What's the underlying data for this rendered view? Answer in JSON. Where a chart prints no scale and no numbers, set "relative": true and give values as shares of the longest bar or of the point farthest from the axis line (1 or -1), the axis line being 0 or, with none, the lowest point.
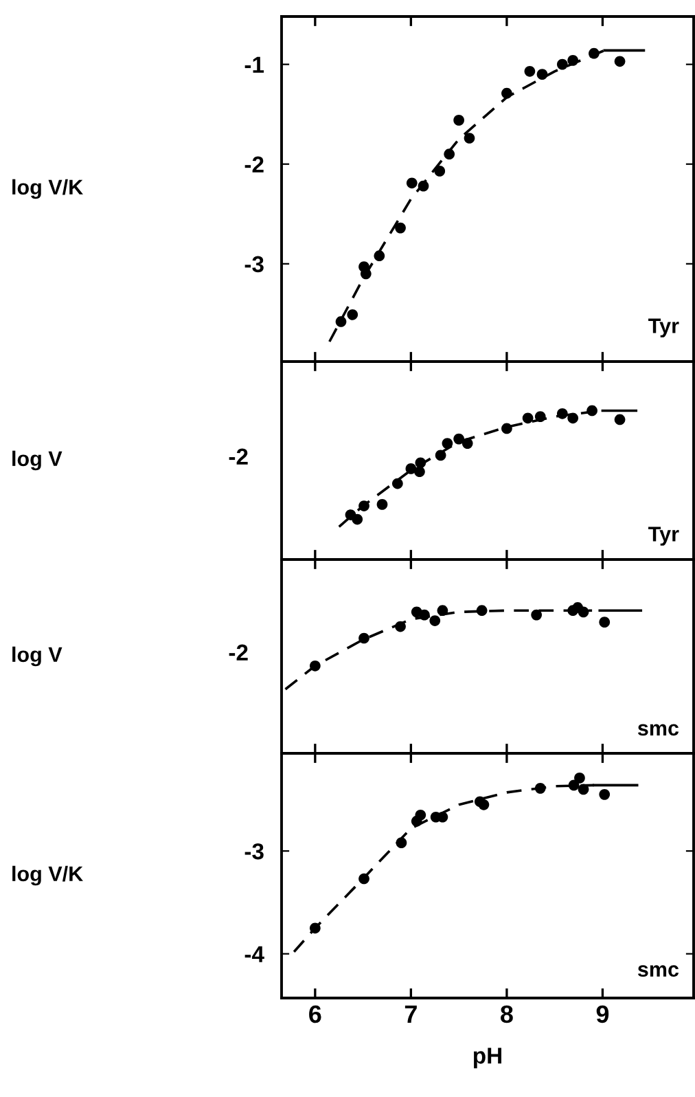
{
  "chart_data": [
    {
      "type": "scatter",
      "title": "Tyr",
      "ylabel": "log V/K",
      "xlim": [
        5.65,
        9.95
      ],
      "xticks": [
        6,
        7,
        8,
        9
      ],
      "ylim": [
        -3.98,
        -0.52
      ],
      "yticks": [
        -1,
        -2,
        -3
      ],
      "tick_labels": "y",
      "series": [
        {
          "marker": "circle",
          "color": "#000000",
          "x": [
            6.27,
            6.39,
            6.51,
            6.53,
            6.67,
            6.89,
            7.01,
            7.13,
            7.3,
            7.4,
            7.5,
            7.61,
            8.0,
            8.24,
            8.37,
            8.58,
            8.69,
            8.91,
            9.18
          ],
          "values": [
            -3.58,
            -3.51,
            -3.03,
            -3.1,
            -2.92,
            -2.64,
            -2.19,
            -2.22,
            -2.07,
            -1.9,
            -1.56,
            -1.74,
            -1.29,
            -1.07,
            -1.1,
            -1.0,
            -0.96,
            -0.89,
            -0.97
          ]
        },
        {
          "type": "line",
          "color": "#000000",
          "line_style": "dashed",
          "x": [
            6.15,
            6.5,
            7.0,
            7.5,
            8.0,
            8.5,
            9.02
          ],
          "values": [
            -3.78,
            -3.15,
            -2.35,
            -1.75,
            -1.33,
            -1.07,
            -0.86
          ]
        },
        {
          "type": "line",
          "color": "#000000",
          "line_style": "solid",
          "x": [
            9.02,
            9.43
          ],
          "values": [
            -0.86,
            -0.86
          ]
        }
      ]
    },
    {
      "type": "scatter",
      "title": "Tyr",
      "ylabel": "log V",
      "annotations": [
        "-2"
      ],
      "relative": true,
      "xlim": [
        5.65,
        9.95
      ],
      "xticks": [
        6,
        7,
        8,
        9
      ],
      "tick_labels": false,
      "series": [
        {
          "marker": "circle",
          "color": "#000000",
          "x": [
            6.37,
            6.44,
            6.51,
            6.7,
            6.86,
            7.0,
            7.09,
            7.1,
            7.31,
            7.38,
            7.5,
            7.59,
            8.0,
            8.22,
            8.35,
            8.58,
            8.69,
            8.89,
            9.18
          ],
          "values": [
            0.3,
            0.27,
            0.36,
            0.37,
            0.51,
            0.61,
            0.59,
            0.65,
            0.7,
            0.78,
            0.81,
            0.78,
            0.88,
            0.95,
            0.96,
            0.98,
            0.95,
            1.0,
            0.94
          ]
        },
        {
          "type": "line",
          "color": "#000000",
          "line_style": "dashed",
          "x": [
            6.25,
            6.5,
            7.0,
            7.5,
            8.0,
            8.5,
            8.98
          ],
          "values": [
            0.22,
            0.36,
            0.6,
            0.79,
            0.89,
            0.96,
            1.0
          ]
        },
        {
          "type": "line",
          "color": "#000000",
          "line_style": "solid",
          "x": [
            9.0,
            9.35
          ],
          "values": [
            1.0,
            1.0
          ]
        }
      ]
    },
    {
      "type": "scatter",
      "title": "smc",
      "ylabel": "log V",
      "annotations": [
        "-2"
      ],
      "relative": true,
      "xlim": [
        5.65,
        9.95
      ],
      "xticks": [
        6,
        7,
        8,
        9
      ],
      "tick_labels": false,
      "series": [
        {
          "marker": "circle",
          "color": "#000000",
          "x": [
            6.0,
            6.51,
            6.89,
            7.06,
            7.14,
            7.25,
            7.33,
            7.74,
            8.31,
            8.69,
            8.74,
            8.8,
            9.02
          ],
          "values": [
            0.6,
            0.79,
            0.87,
            0.97,
            0.95,
            0.91,
            0.98,
            0.98,
            0.95,
            0.98,
            1.0,
            0.97,
            0.9
          ]
        },
        {
          "type": "line",
          "color": "#000000",
          "line_style": "dashed",
          "x": [
            5.69,
            6.0,
            6.5,
            7.0,
            7.5,
            8.0,
            8.89
          ],
          "values": [
            0.44,
            0.6,
            0.78,
            0.92,
            0.97,
            0.98,
            0.98
          ]
        },
        {
          "type": "line",
          "color": "#000000",
          "line_style": "solid",
          "x": [
            8.97,
            9.4
          ],
          "values": [
            0.98,
            0.98
          ]
        }
      ]
    },
    {
      "type": "scatter",
      "title": "smc",
      "ylabel": "log V/K",
      "xlabel": "pH",
      "xlim": [
        5.65,
        9.95
      ],
      "xticks": [
        6,
        7,
        8,
        9
      ],
      "ylim": [
        -4.43,
        -2.05
      ],
      "yticks": [
        -3,
        -4
      ],
      "series": [
        {
          "marker": "circle",
          "color": "#000000",
          "x": [
            6.0,
            6.51,
            6.9,
            7.1,
            7.06,
            7.26,
            7.33,
            7.72,
            7.76,
            8.35,
            8.7,
            8.76,
            8.8,
            9.02
          ],
          "values": [
            -3.75,
            -3.27,
            -2.92,
            -2.65,
            -2.71,
            -2.67,
            -2.67,
            -2.52,
            -2.55,
            -2.39,
            -2.36,
            -2.29,
            -2.4,
            -2.45
          ]
        },
        {
          "type": "line",
          "color": "#000000",
          "line_style": "dashed",
          "x": [
            5.78,
            6.0,
            6.5,
            7.0,
            7.5,
            8.0,
            8.5,
            8.91
          ],
          "values": [
            -3.98,
            -3.75,
            -3.27,
            -2.78,
            -2.55,
            -2.43,
            -2.37,
            -2.36
          ]
        },
        {
          "type": "line",
          "color": "#000000",
          "line_style": "solid",
          "x": [
            8.91,
            9.36
          ],
          "values": [
            -2.36,
            -2.36
          ]
        }
      ]
    }
  ]
}
